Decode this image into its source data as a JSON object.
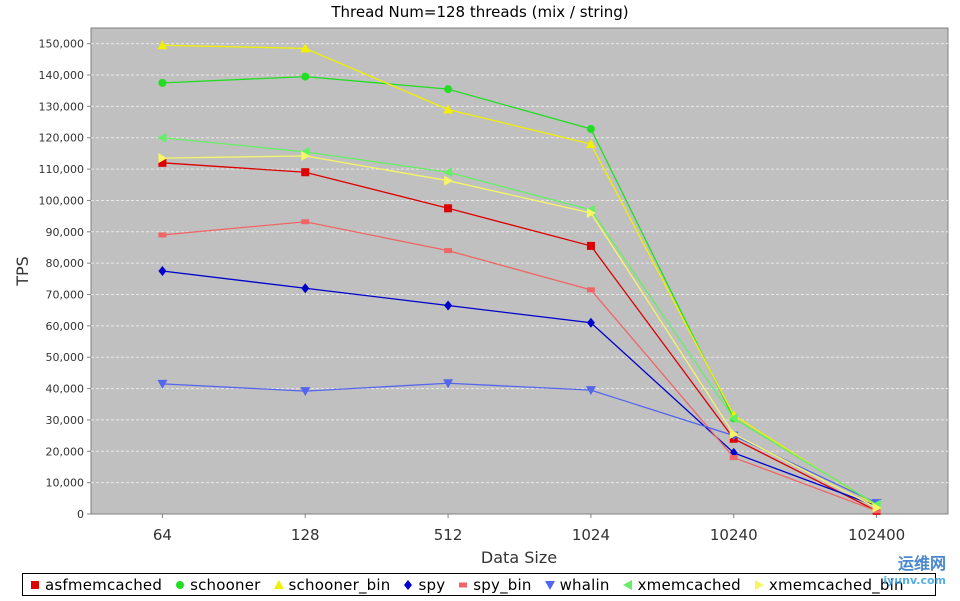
{
  "chart_data": {
    "type": "line",
    "title": "Thread Num=128 threads (mix / string)",
    "xlabel": "Data Size",
    "ylabel": "TPS",
    "categories": [
      "64",
      "128",
      "512",
      "1024",
      "10240",
      "102400"
    ],
    "ylim": [
      0,
      155000
    ],
    "yticks": [
      0,
      10000,
      20000,
      30000,
      40000,
      50000,
      60000,
      70000,
      80000,
      90000,
      100000,
      110000,
      120000,
      130000,
      140000,
      150000
    ],
    "ytick_labels": [
      "0",
      "10,000",
      "20,000",
      "30,000",
      "40,000",
      "50,000",
      "60,000",
      "70,000",
      "80,000",
      "90,000",
      "100,000",
      "110,000",
      "120,000",
      "130,000",
      "140,000",
      "150,000"
    ],
    "grid": true,
    "legend_position": "bottom",
    "plot_background": "#c0c0c0",
    "series": [
      {
        "name": "asfmemcached",
        "color": "#dd0000",
        "marker": "square",
        "values": [
          112000,
          109000,
          97500,
          85500,
          24000,
          1000
        ]
      },
      {
        "name": "schooner",
        "color": "#22dd22",
        "marker": "circle",
        "values": [
          137500,
          139500,
          135500,
          122800,
          30500,
          3000
        ]
      },
      {
        "name": "schooner_bin",
        "color": "#f0f000",
        "marker": "triangle-up",
        "values": [
          149500,
          148500,
          129000,
          118000,
          31500,
          2500
        ]
      },
      {
        "name": "spy",
        "color": "#0000cc",
        "marker": "diamond",
        "values": [
          77500,
          72000,
          66500,
          61000,
          19500,
          2500
        ]
      },
      {
        "name": "spy_bin",
        "color": "#ee6666",
        "marker": "rect",
        "values": [
          89000,
          93200,
          84000,
          71500,
          18000,
          1000
        ]
      },
      {
        "name": "whalin",
        "color": "#5566ee",
        "marker": "triangle-down",
        "values": [
          41500,
          39200,
          41700,
          39500,
          25000,
          3500
        ]
      },
      {
        "name": "xmemcached",
        "color": "#66ee66",
        "marker": "triangle-left",
        "values": [
          120000,
          115500,
          109000,
          97000,
          30500,
          3000
        ]
      },
      {
        "name": "xmemcached_bin",
        "color": "#f5f566",
        "marker": "triangle-right",
        "values": [
          113500,
          114200,
          106300,
          96000,
          25500,
          2000
        ]
      }
    ]
  },
  "watermark": {
    "top": "运维网",
    "bottom": "iyunv.com"
  },
  "colors": {
    "grid": "#e8e8e8",
    "axis": "#808080",
    "text": "#333333"
  }
}
